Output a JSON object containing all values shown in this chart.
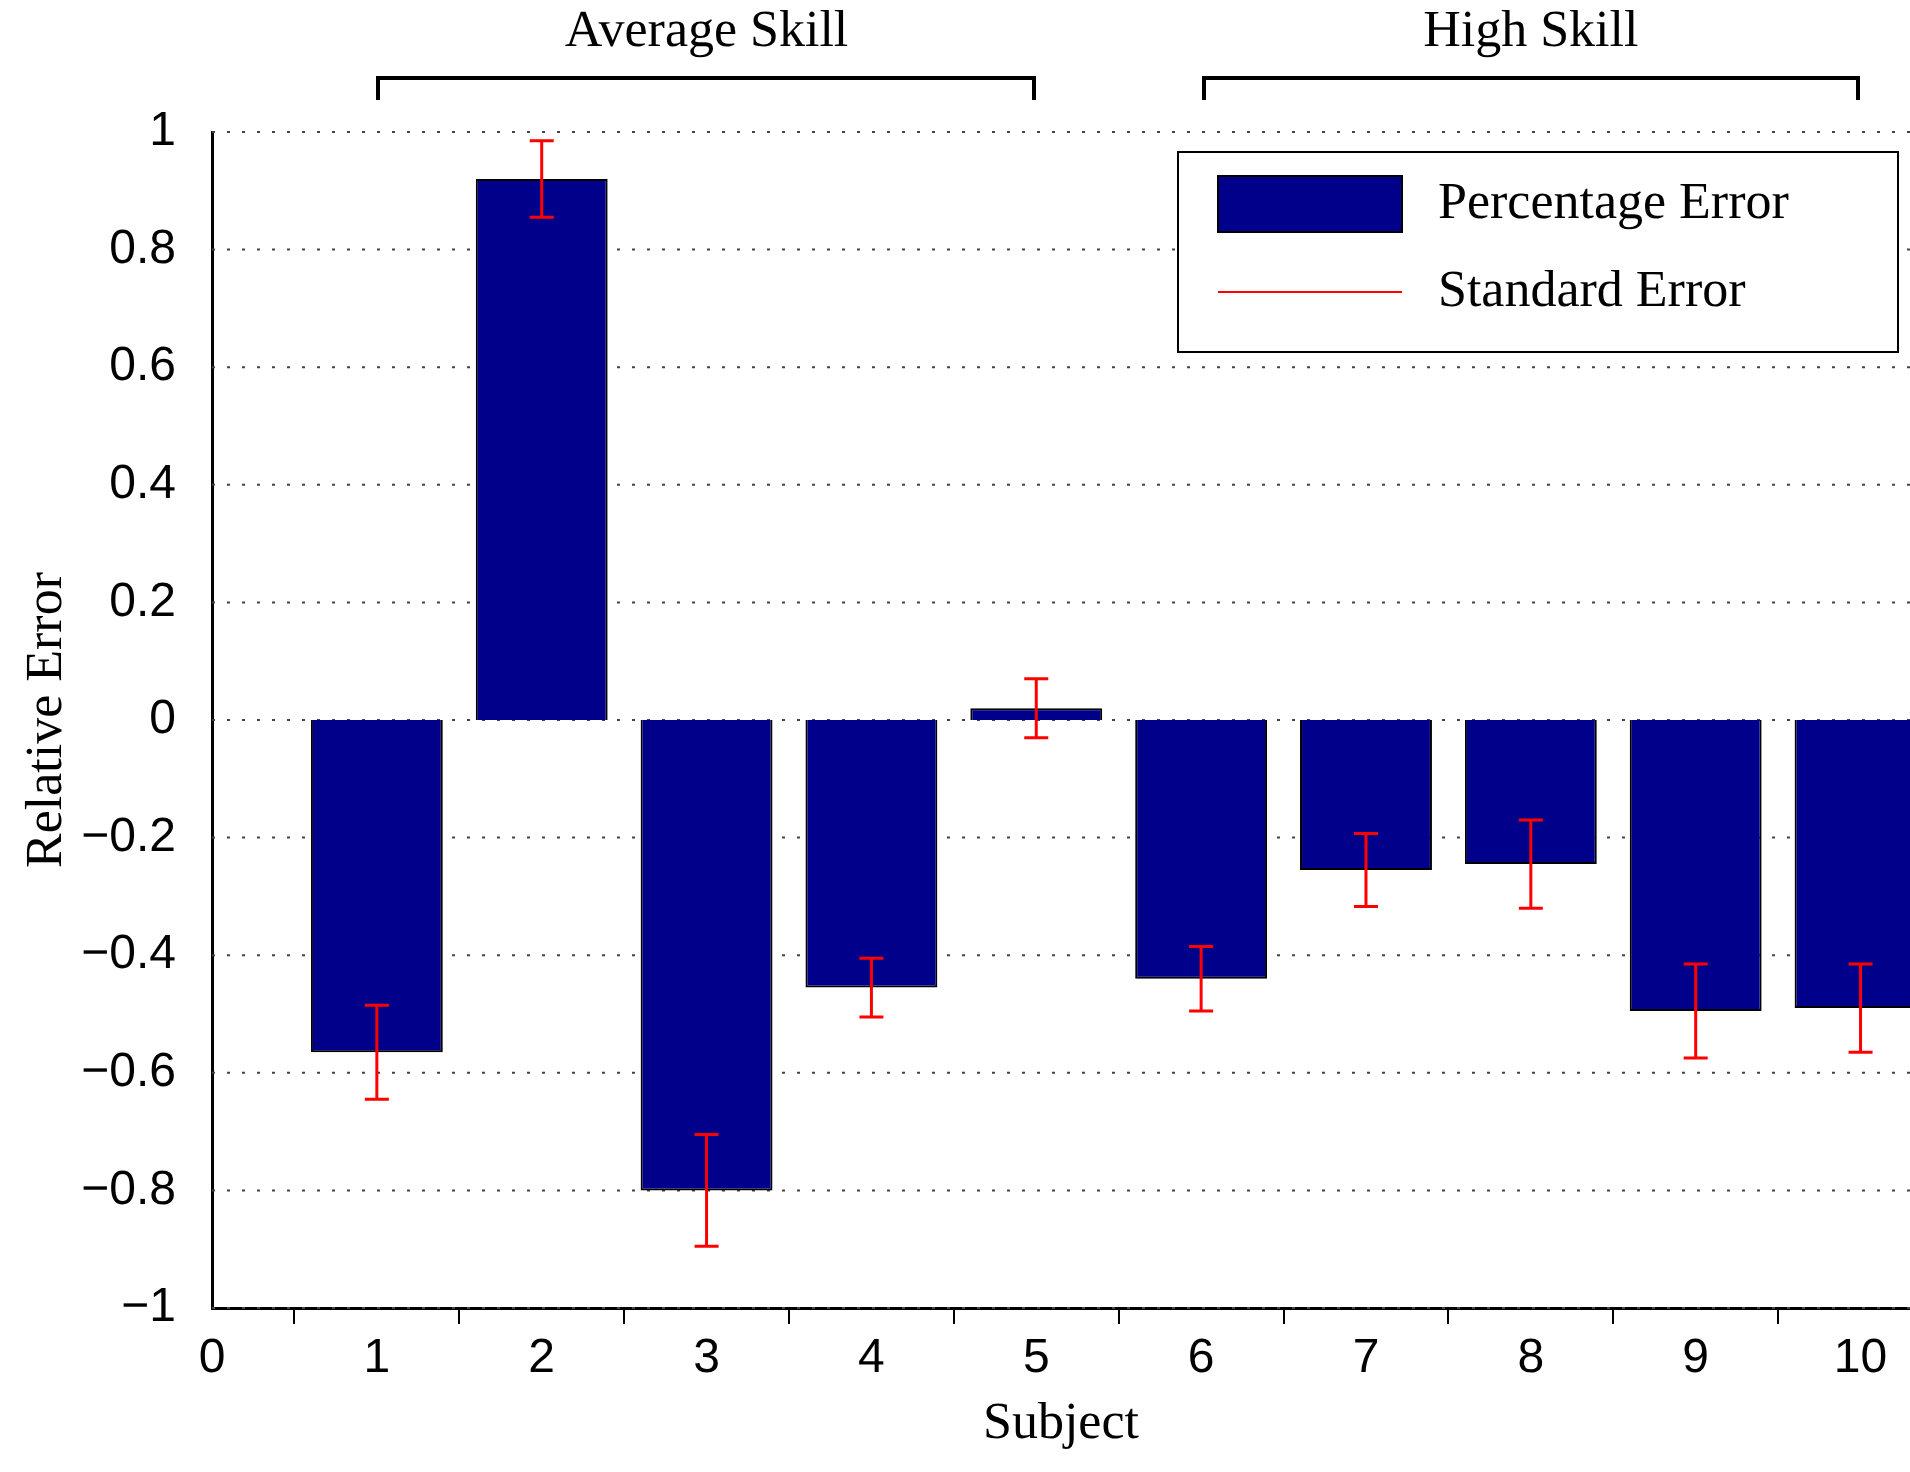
{
  "chart_data": {
    "type": "bar",
    "xlabel": "Subject",
    "ylabel": "Relative Error",
    "x": [
      1,
      2,
      3,
      4,
      5,
      6,
      7,
      8,
      9,
      10
    ],
    "series": [
      {
        "name": "Percentage Error",
        "color": "#00008b",
        "values": [
          -0.565,
          0.92,
          -0.8,
          -0.455,
          0.02,
          -0.44,
          -0.255,
          -0.245,
          -0.495,
          -0.49
        ],
        "errors": [
          0.08,
          0.065,
          0.095,
          0.05,
          0.05,
          0.055,
          0.062,
          0.075,
          0.08,
          0.075
        ]
      }
    ],
    "xlim": [
      0,
      10.3
    ],
    "xticks": [
      0,
      1,
      2,
      3,
      4,
      5,
      6,
      7,
      8,
      9,
      10
    ],
    "ylim": [
      -1,
      1
    ],
    "yticks": [
      -1,
      -0.8,
      -0.6,
      -0.4,
      -0.2,
      0,
      0.2,
      0.4,
      0.6,
      0.8,
      1
    ],
    "annotations": [
      "Average Skill",
      "High Skill",
      "Standard Error"
    ],
    "grid": "y",
    "legend": "top right"
  }
}
